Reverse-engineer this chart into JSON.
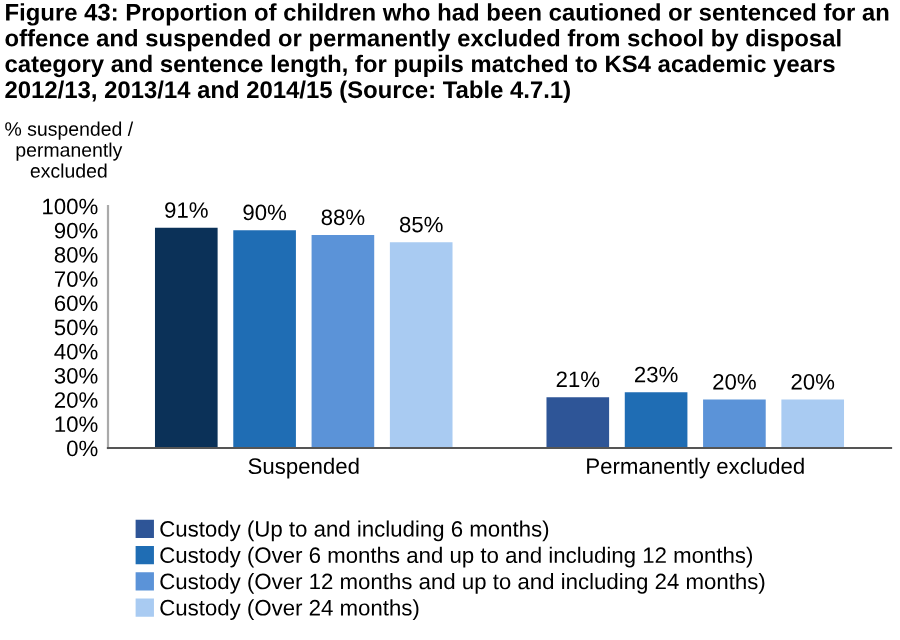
{
  "chart_data": {
    "type": "bar",
    "title": "Figure 43: Proportion of children who had been cautioned or sentenced for an offence and suspended or permanently excluded from school by disposal category and sentence length, for pupils matched to KS4 academic years 2012/13, 2013/14 and 2014/15 (Source: Table 4.7.1)",
    "ylabel": "% suspended /\npermanently\nexcluded",
    "categories": [
      "Suspended",
      "Permanently excluded"
    ],
    "series": [
      {
        "name": "Custody (Up to and including 6 months)",
        "color": "#2e5597",
        "colors": [
          "#0b3158",
          "#2e5597"
        ],
        "values": [
          91,
          21
        ],
        "value_labels": [
          "91%",
          "21%"
        ]
      },
      {
        "name": "Custody (Over 6 months and up to and including 12 months)",
        "color": "#1f6db4",
        "values": [
          90,
          23
        ],
        "value_labels": [
          "90%",
          "23%"
        ]
      },
      {
        "name": "Custody (Over 12 months and up to and including 24 months)",
        "color": "#5b93d8",
        "values": [
          88,
          20
        ],
        "value_labels": [
          "88%",
          "20%"
        ]
      },
      {
        "name": "Custody (Over 24 months)",
        "color": "#a9cbf2",
        "values": [
          85,
          20
        ],
        "value_labels": [
          "85%",
          "20%"
        ]
      }
    ],
    "ylim": [
      0,
      100
    ],
    "yticks": [
      {
        "value": 0,
        "label": "0%"
      },
      {
        "value": 10,
        "label": "10%"
      },
      {
        "value": 20,
        "label": "20%"
      },
      {
        "value": 30,
        "label": "30%"
      },
      {
        "value": 40,
        "label": "40%"
      },
      {
        "value": 50,
        "label": "50%"
      },
      {
        "value": 60,
        "label": "60%"
      },
      {
        "value": 70,
        "label": "70%"
      },
      {
        "value": 80,
        "label": "80%"
      },
      {
        "value": 90,
        "label": "90%"
      },
      {
        "value": 100,
        "label": "100%"
      }
    ],
    "grid": false,
    "legend": "bottom left"
  }
}
